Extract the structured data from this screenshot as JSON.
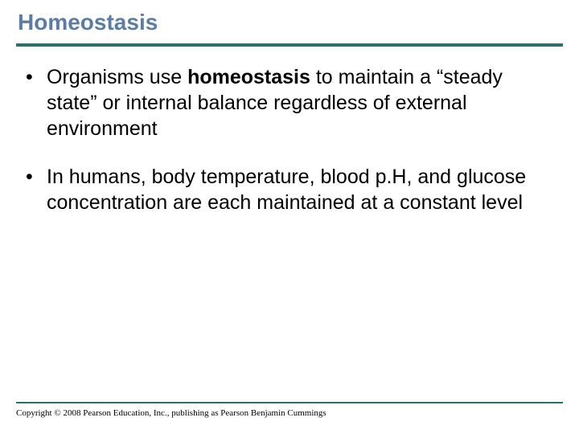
{
  "title": "Homeostasis",
  "title_color": "#5b7ca3",
  "rule_color": "#2b6f6f",
  "background_color": "#ffffff",
  "text_color": "#000000",
  "title_fontsize": 28,
  "bullet_fontsize": 25,
  "bullets": [
    {
      "pre": "Organisms use ",
      "bold": "homeostasis",
      "post": " to maintain a “steady state” or internal balance regardless of external environment"
    },
    {
      "pre": "In humans, body temperature, blood p.H, and glucose concentration are each maintained at a constant level",
      "bold": "",
      "post": ""
    }
  ],
  "copyright": "Copyright © 2008 Pearson Education, Inc., publishing as Pearson Benjamin Cummings"
}
